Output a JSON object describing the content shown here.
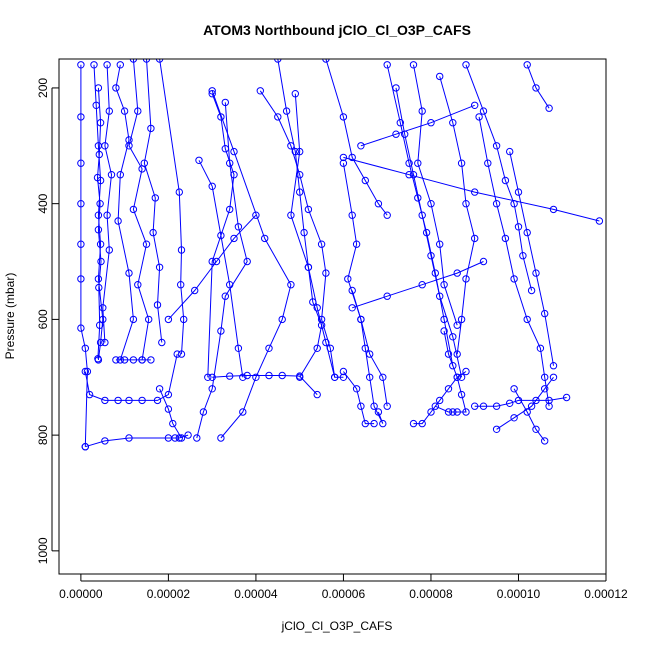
{
  "chart_data": {
    "type": "line",
    "title": "ATOM3 Northbound jClO_Cl_O3P_CAFS",
    "xlabel": "jClO_Cl_O3P_CAFS",
    "ylabel": "Pressure (mbar)",
    "xlim": [
      -5e-06,
      0.00012
    ],
    "ylim": [
      1040,
      150
    ],
    "y_reversed": true,
    "x_ticks": [
      0.0,
      2e-05,
      4e-05,
      6e-05,
      8e-05,
      0.0001,
      0.00012
    ],
    "x_tick_labels": [
      "0.00000",
      "0.00002",
      "0.00004",
      "0.00006",
      "0.00008",
      "0.00010",
      "0.00012"
    ],
    "y_ticks": [
      200,
      400,
      600,
      800,
      1000
    ],
    "y_tick_labels": [
      "200",
      "400",
      "600",
      "800",
      "1000"
    ],
    "grid": false,
    "series_color": "#0000ff",
    "marker": "open-circle",
    "series": [
      {
        "x": [
          0.0,
          0.0,
          0.0,
          0.0,
          0.0,
          0.0,
          0.0,
          1e-06,
          1.5e-06,
          1e-06
        ],
        "y": [
          160,
          250,
          330,
          400,
          470,
          530,
          615,
          650,
          690,
          820
        ]
      },
      {
        "x": [
          3e-06,
          3.5e-06,
          4e-06,
          4.5e-06,
          4e-06,
          4.5e-06,
          4e-06,
          5e-06,
          4.5e-06,
          4e-06
        ],
        "y": [
          160,
          230,
          300,
          360,
          420,
          470,
          530,
          600,
          640,
          670
        ]
      },
      {
        "x": [
          4e-06,
          4.5e-06,
          4.2e-06,
          3.8e-06,
          4.4e-06,
          4e-06,
          4.6e-06,
          4.1e-06,
          4.3e-06,
          3.9e-06
        ],
        "y": [
          200,
          260,
          315,
          355,
          400,
          445,
          500,
          545,
          610,
          668
        ]
      },
      {
        "x": [
          6e-06,
          6.5e-06,
          5.5e-06,
          7e-06,
          6e-06,
          6.5e-06,
          5e-06,
          5.5e-06
        ],
        "y": [
          160,
          240,
          300,
          350,
          420,
          480,
          580,
          640
        ]
      },
      {
        "x": [
          9e-06,
          8e-06,
          1e-05,
          1.1e-05,
          9e-06,
          8.5e-06,
          1.1e-05,
          1.2e-05,
          9e-06
        ],
        "y": [
          160,
          200,
          240,
          290,
          350,
          430,
          520,
          600,
          670
        ]
      },
      {
        "x": [
          1.2e-05,
          1.3e-05,
          1.1e-05,
          1.4e-05,
          1.2e-05,
          1.5e-05,
          1.3e-05,
          1.55e-05,
          1.4e-05
        ],
        "y": [
          150,
          240,
          300,
          340,
          410,
          470,
          540,
          600,
          670
        ]
      },
      {
        "x": [
          1.5e-05,
          1.6e-05,
          1.45e-05,
          1.7e-05,
          1.65e-05,
          1.8e-05,
          1.75e-05,
          1.85e-05
        ],
        "y": [
          150,
          270,
          330,
          390,
          450,
          510,
          575,
          640
        ]
      },
      {
        "x": [
          1.8e-05,
          2.25e-05,
          2.3e-05,
          2.28e-05,
          2.35e-05,
          2.3e-05
        ],
        "y": [
          150,
          380,
          480,
          540,
          600,
          660
        ]
      },
      {
        "x": [
          1e-06,
          2e-06,
          5.5e-06,
          8.5e-06,
          1.1e-05,
          1.4e-05,
          1.75e-05,
          2e-05,
          2.2e-05
        ],
        "y": [
          690,
          730,
          740,
          740,
          740,
          740,
          740,
          730,
          660
        ]
      },
      {
        "x": [
          1e-06,
          5.5e-06,
          1.1e-05,
          2e-05,
          2.15e-05,
          2.25e-05,
          2.45e-05
        ],
        "y": [
          820,
          810,
          805,
          805,
          805,
          805,
          800
        ]
      },
      {
        "x": [
          8e-06,
          1e-05,
          1.2e-05,
          1.4e-05,
          1.6e-05
        ],
        "y": [
          670,
          670,
          670,
          670,
          670
        ]
      },
      {
        "x": [
          1.8e-05,
          2e-05,
          2.1e-05,
          2.3e-05
        ],
        "y": [
          720,
          755,
          780,
          805
        ]
      },
      {
        "x": [
          3e-05,
          3.2e-05,
          3.3e-05,
          3.5e-05,
          3.4e-05,
          3e-05,
          2.9e-05
        ],
        "y": [
          210,
          250,
          305,
          350,
          410,
          500,
          700
        ]
      },
      {
        "x": [
          3.3e-05,
          3.4e-05,
          3.6e-05,
          3.8e-05,
          3.3e-05,
          3.2e-05,
          3e-05,
          2.8e-05,
          2.65e-05
        ],
        "y": [
          225,
          330,
          440,
          500,
          560,
          620,
          720,
          760,
          805
        ]
      },
      {
        "x": [
          2.7e-05,
          3e-05,
          3.2e-05,
          3.4e-05,
          3.6e-05,
          3.7e-05
        ],
        "y": [
          325,
          370,
          455,
          540,
          650,
          700
        ]
      },
      {
        "x": [
          3e-05,
          3.5e-05,
          4.2e-05,
          4.8e-05,
          4.6e-05,
          4.3e-05,
          4e-05,
          3.7e-05,
          3.2e-05
        ],
        "y": [
          205,
          310,
          460,
          540,
          600,
          650,
          700,
          760,
          805
        ]
      },
      {
        "x": [
          3e-05,
          3.4e-05,
          3.8e-05,
          4.3e-05,
          4.6e-05,
          5e-05,
          5.4e-05
        ],
        "y": [
          700,
          698,
          697,
          697,
          697,
          698,
          730
        ]
      },
      {
        "x": [
          4.1e-05,
          4.5e-05,
          4.8e-05,
          5e-05,
          5.2e-05,
          5.5e-05,
          5.6e-05,
          5.5e-05,
          5.7e-05,
          5.8e-05
        ],
        "y": [
          205,
          250,
          300,
          350,
          410,
          470,
          520,
          600,
          650,
          700
        ]
      },
      {
        "x": [
          4.5e-05,
          4.7e-05,
          4.9e-05,
          5e-05,
          5.1e-05,
          5.2e-05,
          5.3e-05,
          5.5e-05,
          5.4e-05,
          5e-05
        ],
        "y": [
          150,
          240,
          310,
          380,
          450,
          510,
          570,
          610,
          650,
          700
        ]
      },
      {
        "x": [
          4.9e-05,
          5e-05,
          4.8e-05,
          5.2e-05,
          5.4e-05,
          5.6e-05,
          5.8e-05,
          6e-05
        ],
        "y": [
          210,
          310,
          420,
          510,
          580,
          640,
          700,
          700
        ]
      },
      {
        "x": [
          5.6e-05,
          6e-05,
          6.2e-05,
          6.5e-05,
          6.8e-05,
          7e-05
        ],
        "y": [
          150,
          250,
          320,
          360,
          400,
          420
        ]
      },
      {
        "x": [
          6e-05,
          6.2e-05,
          6.3e-05,
          6.1e-05,
          6.4e-05,
          6.6e-05,
          6.9e-05,
          7e-05
        ],
        "y": [
          330,
          420,
          470,
          530,
          600,
          660,
          700,
          750
        ]
      },
      {
        "x": [
          6.2e-05,
          6.4e-05,
          6.5e-05,
          6.6e-05,
          6.7e-05,
          6.9e-05,
          6.8e-05
        ],
        "y": [
          550,
          600,
          650,
          700,
          750,
          780,
          760
        ]
      },
      {
        "x": [
          6e-05,
          6.3e-05,
          6.4e-05,
          6.5e-05,
          6.7e-05
        ],
        "y": [
          690,
          720,
          750,
          780,
          780
        ]
      },
      {
        "x": [
          7e-05,
          7.3e-05,
          7.5e-05,
          7.7e-05,
          7.9e-05,
          8.1e-05,
          8.3e-05,
          8.5e-05
        ],
        "y": [
          160,
          260,
          330,
          390,
          450,
          520,
          600,
          680
        ]
      },
      {
        "x": [
          7.2e-05,
          7.4e-05,
          7.6e-05,
          7.8e-05,
          8e-05,
          8.2e-05,
          8.5e-05,
          8.7e-05
        ],
        "y": [
          200,
          280,
          350,
          420,
          490,
          560,
          630,
          700
        ]
      },
      {
        "x": [
          7.6e-05,
          7.8e-05,
          7.7e-05,
          8e-05,
          8.2e-05,
          8.3e-05,
          8.6e-05
        ],
        "y": [
          160,
          240,
          330,
          400,
          470,
          540,
          610
        ]
      },
      {
        "x": [
          8.2e-05,
          8.5e-05,
          8.7e-05,
          8.8e-05,
          9e-05,
          8.8e-05,
          8.7e-05,
          8.6e-05
        ],
        "y": [
          180,
          260,
          330,
          400,
          460,
          530,
          600,
          660
        ]
      },
      {
        "x": [
          8.3e-05,
          8.4e-05,
          8.6e-05,
          8.7e-05,
          8.8e-05,
          8.6e-05,
          8.5e-05,
          8.4e-05,
          8.1e-05
        ],
        "y": [
          620,
          660,
          700,
          730,
          760,
          760,
          760,
          760,
          750
        ]
      },
      {
        "x": [
          7.6e-05,
          7.8e-05,
          8e-05,
          8.2e-05,
          8.4e-05,
          8.6e-05,
          8.8e-05
        ],
        "y": [
          780,
          780,
          760,
          740,
          720,
          700,
          690
        ]
      },
      {
        "x": [
          8.8e-05,
          9.2e-05,
          9.5e-05,
          9.7e-05,
          9.9e-05,
          0.0001,
          0.000101,
          0.000103
        ],
        "y": [
          160,
          240,
          300,
          360,
          400,
          440,
          490,
          550
        ]
      },
      {
        "x": [
          9.1e-05,
          9.3e-05,
          9.5e-05,
          9.7e-05,
          9.9e-05,
          0.000102,
          0.000105,
          0.000106,
          0.000107
        ],
        "y": [
          250,
          330,
          400,
          460,
          530,
          600,
          650,
          700,
          750
        ]
      },
      {
        "x": [
          9.8e-05,
          0.0001,
          0.000102,
          0.000104,
          0.000106,
          0.000108
        ],
        "y": [
          310,
          380,
          450,
          520,
          590,
          680
        ]
      },
      {
        "x": [
          9e-05,
          9.2e-05,
          9.5e-05,
          9.8e-05,
          0.0001,
          0.000104,
          0.000107,
          0.000111
        ],
        "y": [
          750,
          750,
          750,
          745,
          740,
          740,
          740,
          735
        ]
      },
      {
        "x": [
          9.5e-05,
          9.9e-05,
          0.000103,
          0.000106,
          0.000108
        ],
        "y": [
          790,
          770,
          750,
          720,
          700
        ]
      },
      {
        "x": [
          9.9e-05,
          0.000102,
          0.000104,
          0.000106
        ],
        "y": [
          720,
          760,
          790,
          810
        ]
      },
      {
        "x": [
          0.000102,
          0.000104,
          0.000107
        ],
        "y": [
          160,
          200,
          235
        ]
      },
      {
        "x": [
          6e-05,
          7.5e-05,
          9e-05,
          0.000108,
          0.0001185
        ],
        "y": [
          320,
          350,
          380,
          410,
          430
        ]
      },
      {
        "x": [
          6.4e-05,
          7.2e-05,
          8e-05,
          9e-05
        ],
        "y": [
          300,
          280,
          260,
          230
        ]
      },
      {
        "x": [
          2e-05,
          2.6e-05,
          3.1e-05,
          3.5e-05,
          4e-05
        ],
        "y": [
          600,
          550,
          500,
          460,
          420
        ]
      },
      {
        "x": [
          6.2e-05,
          7e-05,
          7.8e-05,
          8.6e-05,
          9.2e-05
        ],
        "y": [
          580,
          560,
          540,
          520,
          500
        ]
      }
    ]
  }
}
